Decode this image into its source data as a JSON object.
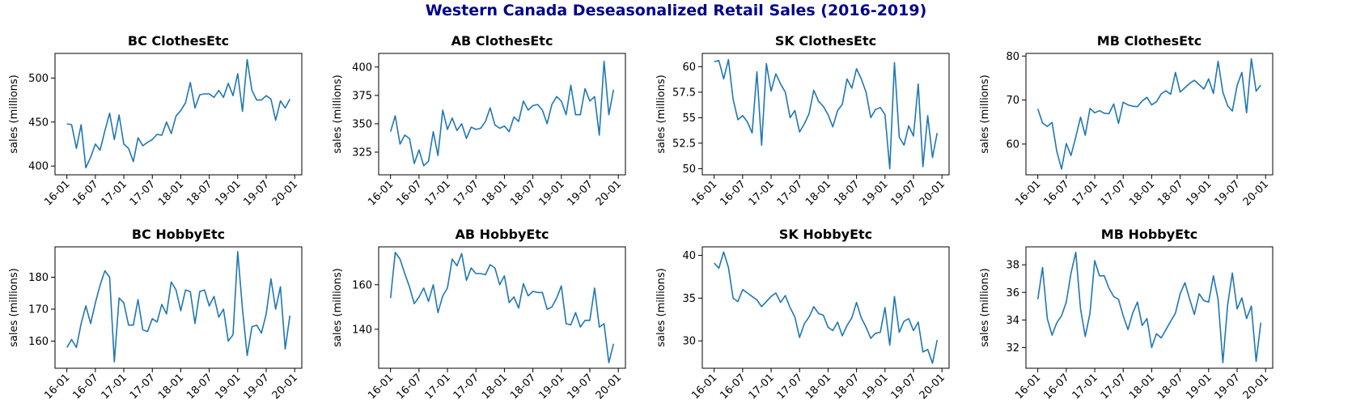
{
  "title": "Western Canada Deseasonalized Retail Sales (2016-2019)",
  "colors": {
    "title": "#00008b",
    "series": "#1f77b4"
  },
  "chart_data": [
    {
      "type": "line",
      "title": "BC ClothesEtc",
      "ylabel": "sales (millions)",
      "x_ticks": [
        "16-01",
        "16-07",
        "17-01",
        "17-07",
        "18-01",
        "18-07",
        "19-01",
        "19-07",
        "20-01"
      ],
      "x_range": [
        -2.5,
        49.5
      ],
      "y_ticks": [
        400,
        450,
        500
      ],
      "ylim": [
        390,
        528
      ],
      "values": [
        448,
        447,
        420,
        447,
        398,
        410,
        425,
        418,
        440,
        460,
        430,
        458,
        425,
        420,
        405,
        432,
        423,
        427,
        430,
        436,
        435,
        450,
        437,
        457,
        463,
        472,
        495,
        466,
        481,
        482,
        482,
        478,
        486,
        478,
        494,
        480,
        505,
        462,
        521,
        486,
        475,
        475,
        480,
        476,
        452,
        474,
        466,
        476
      ]
    },
    {
      "type": "line",
      "title": "AB ClothesEtc",
      "ylabel": "sales (millions)",
      "x_ticks": [
        "16-01",
        "16-07",
        "17-01",
        "17-07",
        "18-01",
        "18-07",
        "19-01",
        "19-07",
        "20-01"
      ],
      "x_range": [
        -2.5,
        49.5
      ],
      "y_ticks": [
        325,
        350,
        375,
        400
      ],
      "ylim": [
        305,
        412
      ],
      "values": [
        343,
        357,
        332,
        340,
        337,
        315,
        327,
        313,
        317,
        343,
        322,
        362,
        345,
        355,
        344,
        350,
        337,
        347,
        345,
        346,
        352,
        364,
        349,
        346,
        348,
        343,
        356,
        352,
        370,
        362,
        366,
        367,
        362,
        350,
        367,
        374,
        370,
        358,
        384,
        358,
        358,
        381,
        370,
        374,
        340,
        405,
        358,
        380
      ]
    },
    {
      "type": "line",
      "title": "SK ClothesEtc",
      "ylabel": "sales (millions)",
      "x_ticks": [
        "16-01",
        "16-07",
        "17-01",
        "17-07",
        "18-01",
        "18-07",
        "19-01",
        "19-07",
        "20-01"
      ],
      "x_range": [
        -2.5,
        49.5
      ],
      "y_ticks": [
        "50",
        "52.5",
        "55",
        "57.5",
        "60"
      ],
      "ylim": [
        49.4,
        61.3
      ],
      "values": [
        60.5,
        60.6,
        58.8,
        60.7,
        56.8,
        54.8,
        55.2,
        54.6,
        53.5,
        59.5,
        52.3,
        60.3,
        57.6,
        59.3,
        58.3,
        57.5,
        55.0,
        55.7,
        53.6,
        54.4,
        55.4,
        57.7,
        56.6,
        56.1,
        55.3,
        54.1,
        55.7,
        56.3,
        58.8,
        57.9,
        59.8,
        58.8,
        57.5,
        55.0,
        55.8,
        56.0,
        55.3,
        50.0,
        60.4,
        53.1,
        52.3,
        54.2,
        53.2,
        58.3,
        50.2,
        55.2,
        51.1,
        53.5
      ]
    },
    {
      "type": "line",
      "title": "MB ClothesEtc",
      "ylabel": "sales (millions)",
      "x_ticks": [
        "16-01",
        "16-07",
        "17-01",
        "17-07",
        "18-01",
        "18-07",
        "19-01",
        "19-07",
        "20-01"
      ],
      "x_range": [
        -2.5,
        49.5
      ],
      "y_ticks": [
        60,
        70,
        80
      ],
      "ylim": [
        53,
        80.6
      ],
      "values": [
        68.0,
        64.8,
        64.0,
        64.9,
        58.4,
        54.3,
        60.1,
        57.4,
        61.6,
        66.1,
        62.0,
        68.1,
        67.1,
        67.6,
        67.0,
        66.9,
        69.1,
        64.7,
        69.5,
        68.9,
        68.6,
        68.5,
        69.8,
        70.6,
        68.9,
        69.6,
        71.4,
        72.1,
        71.3,
        76.3,
        71.8,
        72.8,
        73.8,
        74.5,
        73.5,
        72.5,
        74.8,
        71.5,
        78.8,
        71.8,
        68.7,
        67.5,
        73.3,
        76.3,
        67.1,
        79.4,
        72.0,
        73.4
      ]
    },
    {
      "type": "line",
      "title": "BC HobbyEtc",
      "ylabel": "sales (millions)",
      "x_ticks": [
        "16-01",
        "16-07",
        "17-01",
        "17-07",
        "18-01",
        "18-07",
        "19-01",
        "19-07",
        "20-01"
      ],
      "x_range": [
        -2.5,
        49.5
      ],
      "y_ticks": [
        160,
        170,
        180
      ],
      "ylim": [
        151.5,
        189.5
      ],
      "values": [
        158,
        160.5,
        158,
        165.5,
        171,
        165.5,
        172,
        177.5,
        182,
        180,
        153.5,
        173.5,
        172,
        165,
        165,
        173,
        163.5,
        163,
        167,
        166,
        171.5,
        168.5,
        178.5,
        176,
        169.5,
        176,
        175.5,
        165.5,
        175.5,
        176,
        171,
        174,
        167.5,
        170,
        160,
        162,
        188,
        170,
        155.5,
        164.5,
        165,
        162.5,
        168.5,
        179.5,
        170,
        177,
        157.5,
        168
      ]
    },
    {
      "type": "line",
      "title": "AB HobbyEtc",
      "ylabel": "sales (millions)",
      "x_ticks": [
        "16-01",
        "16-07",
        "17-01",
        "17-07",
        "18-01",
        "18-07",
        "19-01",
        "19-07",
        "20-01"
      ],
      "x_range": [
        -2.5,
        49.5
      ],
      "y_ticks": [
        140,
        160
      ],
      "ylim": [
        122.5,
        177
      ],
      "values": [
        154,
        174.5,
        171.5,
        165,
        159,
        151.5,
        154.5,
        158.5,
        152.5,
        160,
        147.5,
        155,
        158.5,
        171.5,
        168.5,
        174,
        162,
        167.5,
        165,
        165,
        164.5,
        169,
        167.5,
        160,
        164,
        152,
        154.5,
        149.5,
        160.5,
        155,
        157,
        156.5,
        156.5,
        149,
        150,
        154,
        159.5,
        142.5,
        142,
        147.5,
        141,
        144,
        144,
        158.5,
        141,
        142.5,
        125,
        133.5
      ]
    },
    {
      "type": "line",
      "title": "SK HobbyEtc",
      "ylabel": "sales (millions)",
      "x_ticks": [
        "16-01",
        "16-07",
        "17-01",
        "17-07",
        "18-01",
        "18-07",
        "19-01",
        "19-07",
        "20-01"
      ],
      "x_range": [
        -2.5,
        49.5
      ],
      "y_ticks": [
        30,
        35,
        40
      ],
      "ylim": [
        26.8,
        41
      ],
      "values": [
        39.1,
        38.5,
        40.4,
        38.6,
        35,
        34.6,
        36,
        35.6,
        35.2,
        34.8,
        34.0,
        34.6,
        35.2,
        35.6,
        34.5,
        35.3,
        33.9,
        32.8,
        30.4,
        32.0,
        32.8,
        34.0,
        33.2,
        33.0,
        31.6,
        31.2,
        32.2,
        30.6,
        31.8,
        32.7,
        34.5,
        32.7,
        31.6,
        30.3,
        30.9,
        31.0,
        33.9,
        29.5,
        35.2,
        31.0,
        32.3,
        32.6,
        31.2,
        32.2,
        28.7,
        29.0,
        27.4,
        30.1
      ]
    },
    {
      "type": "line",
      "title": "MB HobbyEtc",
      "ylabel": "sales (millions)",
      "x_ticks": [
        "16-01",
        "16-07",
        "17-01",
        "17-07",
        "18-01",
        "18-07",
        "19-01",
        "19-07",
        "20-01"
      ],
      "x_range": [
        -2.5,
        49.5
      ],
      "y_ticks": [
        32,
        34,
        36,
        38
      ],
      "ylim": [
        30.5,
        39.3
      ],
      "values": [
        35.5,
        37.8,
        34.1,
        32.9,
        33.8,
        34.3,
        35.3,
        37.4,
        38.9,
        34.8,
        32.8,
        34.5,
        38.3,
        37.2,
        37.2,
        36.3,
        35.7,
        35.5,
        34.3,
        33.3,
        34.5,
        35.3,
        33.6,
        34.1,
        32.0,
        33.0,
        32.7,
        33.3,
        33.9,
        34.5,
        35.9,
        36.7,
        35.5,
        34.4,
        35.9,
        35.4,
        35.3,
        37.2,
        35.5,
        30.9,
        35.1,
        37.4,
        34.8,
        35.6,
        34.1,
        35.0,
        31.0,
        33.8
      ]
    }
  ]
}
